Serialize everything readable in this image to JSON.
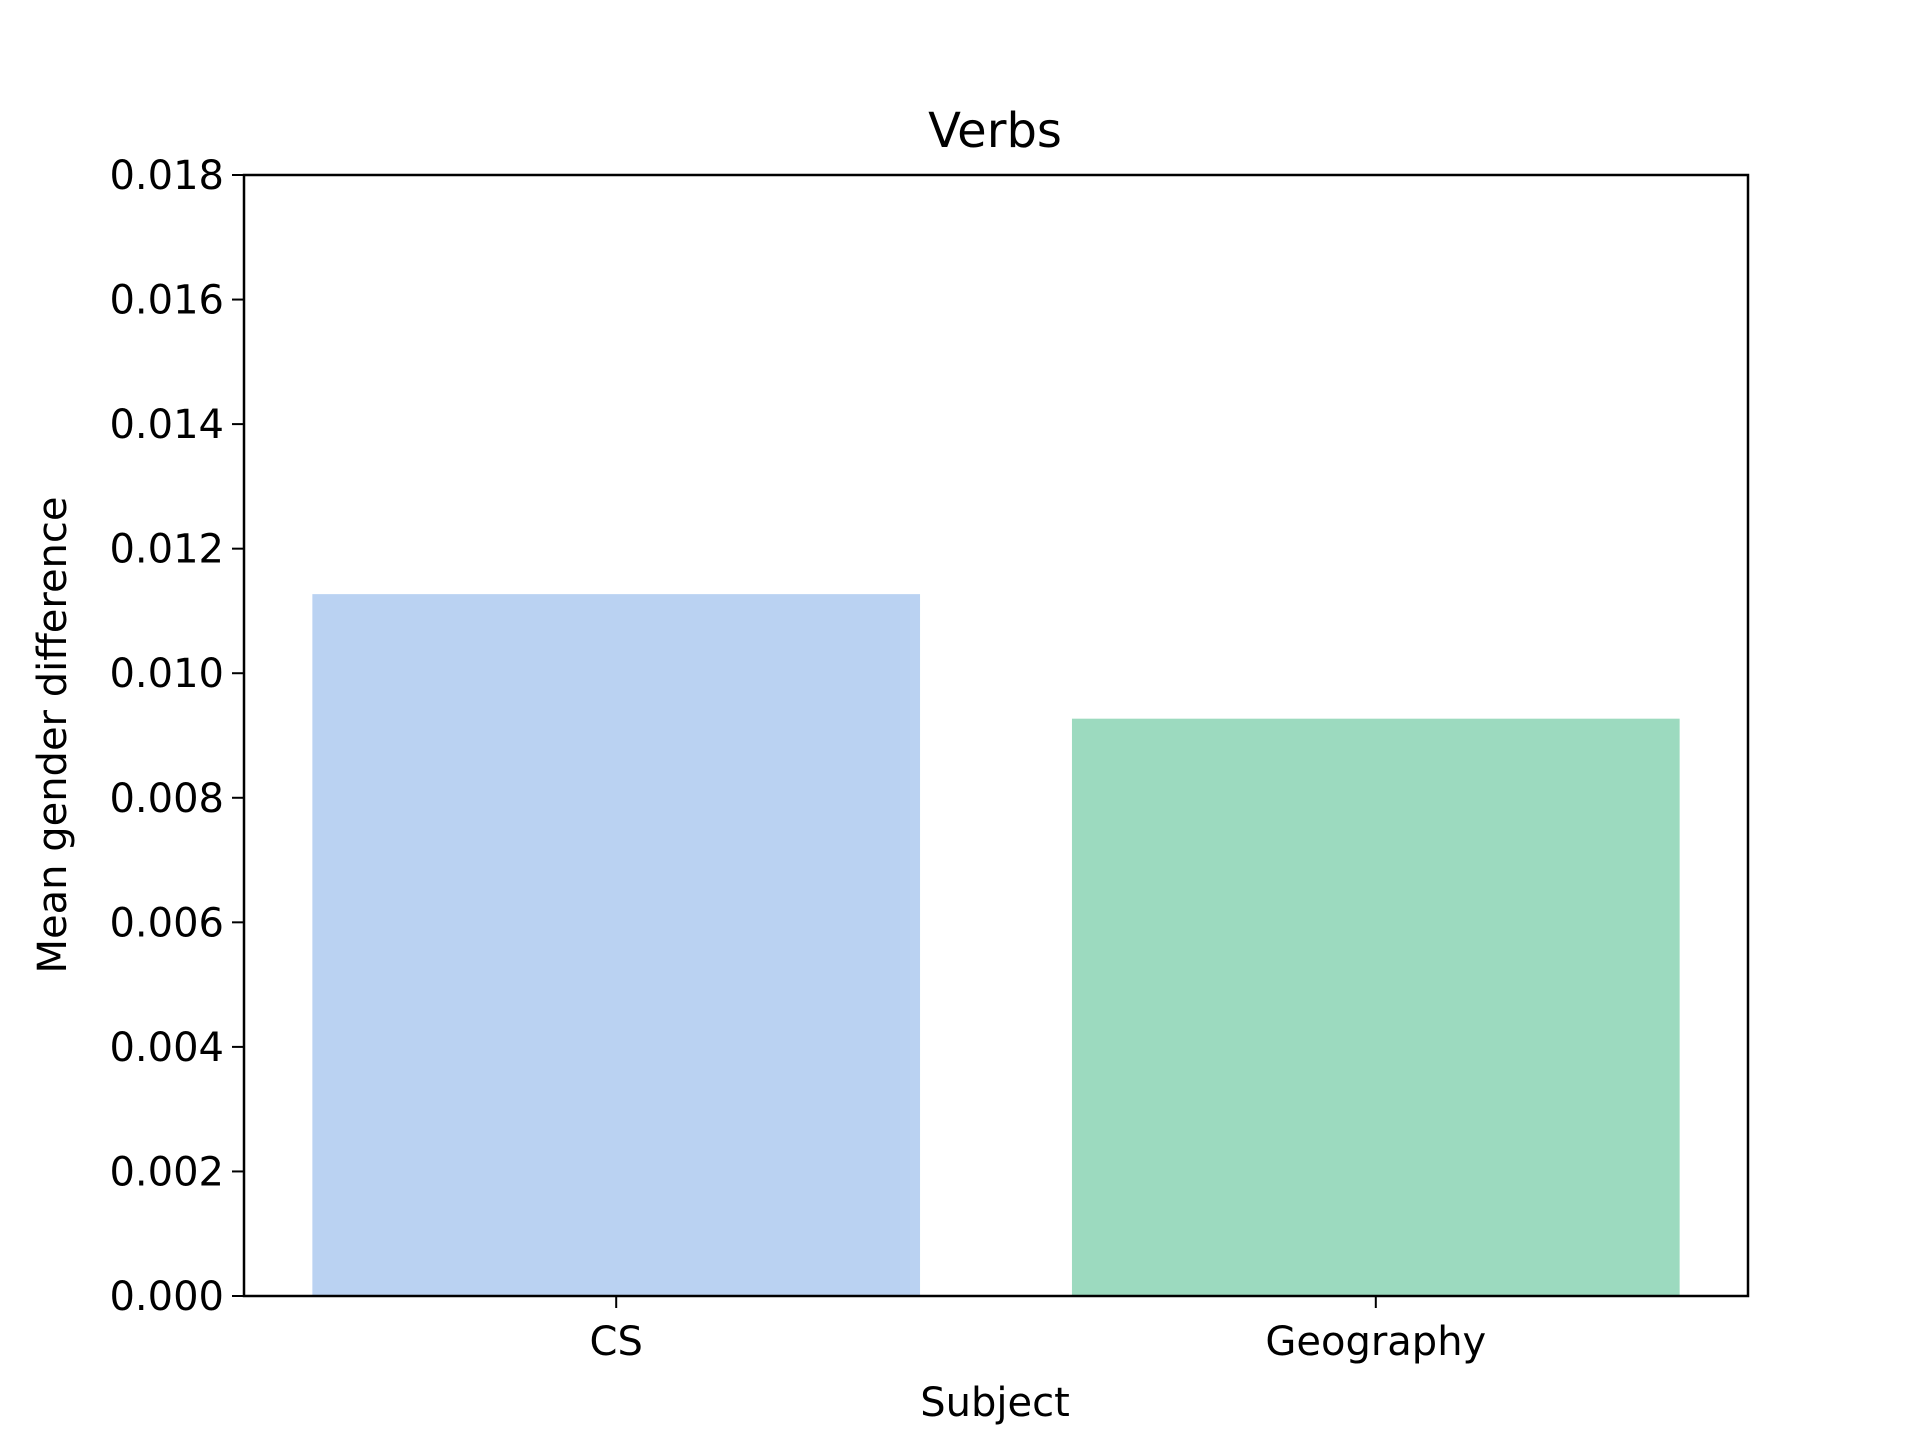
{
  "chart_data": {
    "type": "bar",
    "title": "Verbs",
    "xlabel": "Subject",
    "ylabel": "Mean gender difference",
    "categories": [
      "CS",
      "Geography"
    ],
    "values": [
      0.01127,
      0.00927
    ],
    "bar_colors": [
      "#bad2f2",
      "#9cdabf"
    ],
    "ylim": [
      0,
      0.018
    ],
    "yticks": [
      "0.000",
      "0.002",
      "0.004",
      "0.006",
      "0.008",
      "0.010",
      "0.012",
      "0.014",
      "0.016",
      "0.018"
    ],
    "grid": false,
    "legend": "none"
  }
}
